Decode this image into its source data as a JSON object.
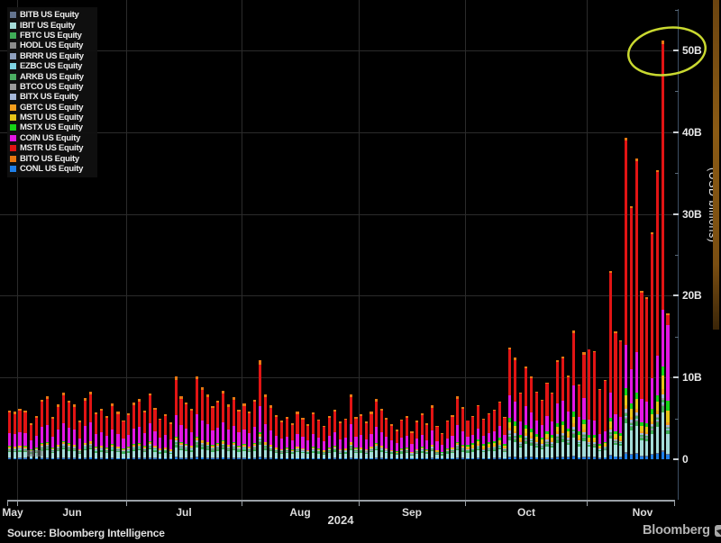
{
  "window": {
    "background": "#000000"
  },
  "legend": {
    "items": [
      {
        "ticker": "BITB",
        "label": "BITB US Equity",
        "color": "#64748f"
      },
      {
        "ticker": "IBIT",
        "label": "IBIT US Equity",
        "color": "#a5dcd9"
      },
      {
        "ticker": "FBTC",
        "label": "FBTC US Equity",
        "color": "#3fae58"
      },
      {
        "ticker": "HODL",
        "label": "HODL US Equity",
        "color": "#8c8c8c"
      },
      {
        "ticker": "BRRR",
        "label": "BRRR US Equity",
        "color": "#8fa0bf"
      },
      {
        "ticker": "EZBC",
        "label": "EZBC US Equity",
        "color": "#7fd4e4"
      },
      {
        "ticker": "ARKB",
        "label": "ARKB US Equity",
        "color": "#4caf63"
      },
      {
        "ticker": "BTCO",
        "label": "BTCO US Equity",
        "color": "#9c9c9c"
      },
      {
        "ticker": "BITX",
        "label": "BITX US Equity",
        "color": "#a6b8d9"
      },
      {
        "ticker": "GBTC",
        "label": "GBTC US Equity",
        "color": "#f59f1e"
      },
      {
        "ticker": "MSTU",
        "label": "MSTU US Equity",
        "color": "#e6c419"
      },
      {
        "ticker": "MSTX",
        "label": "MSTX US Equity",
        "color": "#17d417"
      },
      {
        "ticker": "COIN",
        "label": "COIN US Equity",
        "color": "#e317e3"
      },
      {
        "ticker": "MSTR",
        "label": "MSTR US Equity",
        "color": "#e11414"
      },
      {
        "ticker": "BITO",
        "label": "BITO US Equity",
        "color": "#e87711"
      },
      {
        "ticker": "CONL",
        "label": "CONL US Equity",
        "color": "#1f7fe8"
      }
    ]
  },
  "y_axis": {
    "unit": "(USD billions)",
    "ticks": [
      {
        "value": 0,
        "label": "0"
      },
      {
        "value": 10,
        "label": "10B"
      },
      {
        "value": 20,
        "label": "20B"
      },
      {
        "value": 30,
        "label": "30B"
      },
      {
        "value": 40,
        "label": "40B"
      },
      {
        "value": 50,
        "label": "50B"
      }
    ],
    "minor_step": 5
  },
  "x_axis": {
    "months": [
      "May",
      "Jun",
      "Jul",
      "Aug",
      "Sep",
      "Oct",
      "Nov"
    ],
    "year": "2024"
  },
  "annotation": {
    "type": "ellipse",
    "highlights": "record daily combined volume peak at ~51B next to the 50B tick",
    "color": "#c9d930"
  },
  "footer": {
    "source": "Source: Bloomberg Intelligence",
    "brand": "Bloomberg"
  },
  "chart_data": {
    "type": "bar",
    "stacked": true,
    "unit": "USD billions",
    "ylim": [
      0,
      55
    ],
    "grid": true,
    "legend_position": "top-left",
    "months": [
      "May",
      "Jun",
      "Jul",
      "Aug",
      "Sep",
      "Oct",
      "Nov"
    ],
    "monthly_totals": {
      "May": [
        6.0,
        5.8
      ],
      "Jun": [
        6.2,
        6.0,
        4.4,
        5.3,
        7.3,
        7.7,
        5.2,
        6.7,
        8.2,
        7.2,
        6.7,
        4.7,
        7.5,
        8.3,
        5.7,
        6.2,
        5.3,
        6.8,
        5.8,
        4.8
      ],
      "Jul": [
        5.6,
        6.9,
        7.4,
        6.0,
        8.1,
        6.3,
        5.0,
        5.5,
        4.5,
        10.1,
        7.7,
        7.0,
        6.2,
        10.2,
        8.8,
        7.9,
        6.5,
        7.2,
        8.4,
        6.7,
        7.6,
        6.1
      ],
      "Aug": [
        6.8,
        5.9,
        7.3,
        12.1,
        7.9,
        6.6,
        5.4,
        4.7,
        5.2,
        4.4,
        5.8,
        5.1,
        4.3,
        5.7,
        4.9,
        4.1,
        5.3,
        6.1,
        4.6,
        5.0,
        7.9,
        5.2
      ],
      "Sep": [
        5.5,
        4.6,
        5.8,
        7.4,
        6.2,
        5.1,
        4.3,
        3.6,
        4.9,
        5.3,
        3.4,
        4.7,
        5.6,
        4.4,
        6.6,
        4.1,
        3.2,
        4.8,
        5.4,
        7.7,
        6.4
      ],
      "Oct": [
        4.8,
        5.3,
        6.6,
        5.0,
        5.6,
        6.1,
        7.1,
        5.2,
        13.7,
        12.4,
        8.2,
        11.4,
        10.1,
        8.3,
        7.3,
        9.4,
        8.2,
        12.1,
        12.6,
        10.3,
        15.8,
        9.2,
        13.1
      ],
      "Nov": [
        13.5,
        13.2,
        8.6,
        9.7,
        23.0,
        15.6,
        14.5,
        39.3,
        31.0,
        36.8,
        20.6,
        19.8,
        27.8,
        35.4,
        51.2,
        17.8
      ]
    },
    "stack_order_bottom_up": [
      "CONL",
      "BITB",
      "IBIT",
      "FBTC",
      "HODL",
      "BRRR",
      "EZBC",
      "ARKB",
      "BTCO",
      "BITX",
      "GBTC",
      "MSTU",
      "MSTX",
      "COIN",
      "MSTR",
      "BITO"
    ],
    "series_colors": {
      "BITB": "#64748f",
      "IBIT": "#a5dcd9",
      "FBTC": "#3fae58",
      "HODL": "#8c8c8c",
      "BRRR": "#8fa0bf",
      "EZBC": "#7fd4e4",
      "ARKB": "#4caf63",
      "BTCO": "#9c9c9c",
      "BITX": "#a6b8d9",
      "GBTC": "#f59f1e",
      "MSTU": "#e6c419",
      "MSTX": "#17d417",
      "COIN": "#e317e3",
      "MSTR": "#e11414",
      "BITO": "#e87711",
      "CONL": "#1f7fe8"
    },
    "stack_profiles": {
      "base": {
        "CONL": 0.02,
        "BITB": 0.008,
        "IBIT": 0.115,
        "FBTC": 0.03,
        "HODL": 0.006,
        "BRRR": 0.005,
        "EZBC": 0.005,
        "ARKB": 0.015,
        "BTCO": 0.005,
        "BITX": 0.02,
        "GBTC": 0.026,
        "MSTU": 0.005,
        "MSTX": 0.01,
        "COIN": 0.27,
        "MSTR": 0.42,
        "BITO": 0.04
      },
      "oct": {
        "CONL": 0.02,
        "BITB": 0.008,
        "IBIT": 0.14,
        "FBTC": 0.03,
        "HODL": 0.006,
        "BRRR": 0.005,
        "EZBC": 0.005,
        "ARKB": 0.015,
        "BTCO": 0.005,
        "BITX": 0.02,
        "GBTC": 0.025,
        "MSTU": 0.05,
        "MSTX": 0.04,
        "COIN": 0.2,
        "MSTR": 0.411,
        "BITO": 0.02
      },
      "nov": {
        "CONL": 0.018,
        "BITB": 0.004,
        "IBIT": 0.09,
        "FBTC": 0.015,
        "HODL": 0.003,
        "BRRR": 0.003,
        "EZBC": 0.003,
        "ARKB": 0.007,
        "BTCO": 0.003,
        "BITX": 0.01,
        "GBTC": 0.012,
        "MSTU": 0.032,
        "MSTX": 0.022,
        "COIN": 0.135,
        "MSTR": 0.635,
        "BITO": 0.008
      },
      "coin_heavy": {
        "CONL": 0.03,
        "BITB": 0.006,
        "IBIT": 0.14,
        "FBTC": 0.02,
        "HODL": 0.004,
        "BRRR": 0.004,
        "EZBC": 0.004,
        "ARKB": 0.01,
        "BTCO": 0.004,
        "BITX": 0.014,
        "GBTC": 0.02,
        "MSTU": 0.08,
        "MSTX": 0.064,
        "COIN": 0.52,
        "MSTR": 0.07,
        "BITO": 0.01
      }
    },
    "profile_by_month": {
      "May": "base",
      "Jun": "base",
      "Jul": "base",
      "Aug": "base",
      "Sep": "base",
      "Oct": "oct",
      "Nov": "nov"
    },
    "last_bar_profile": "coin_heavy",
    "peak_value_billions": 51.2
  }
}
